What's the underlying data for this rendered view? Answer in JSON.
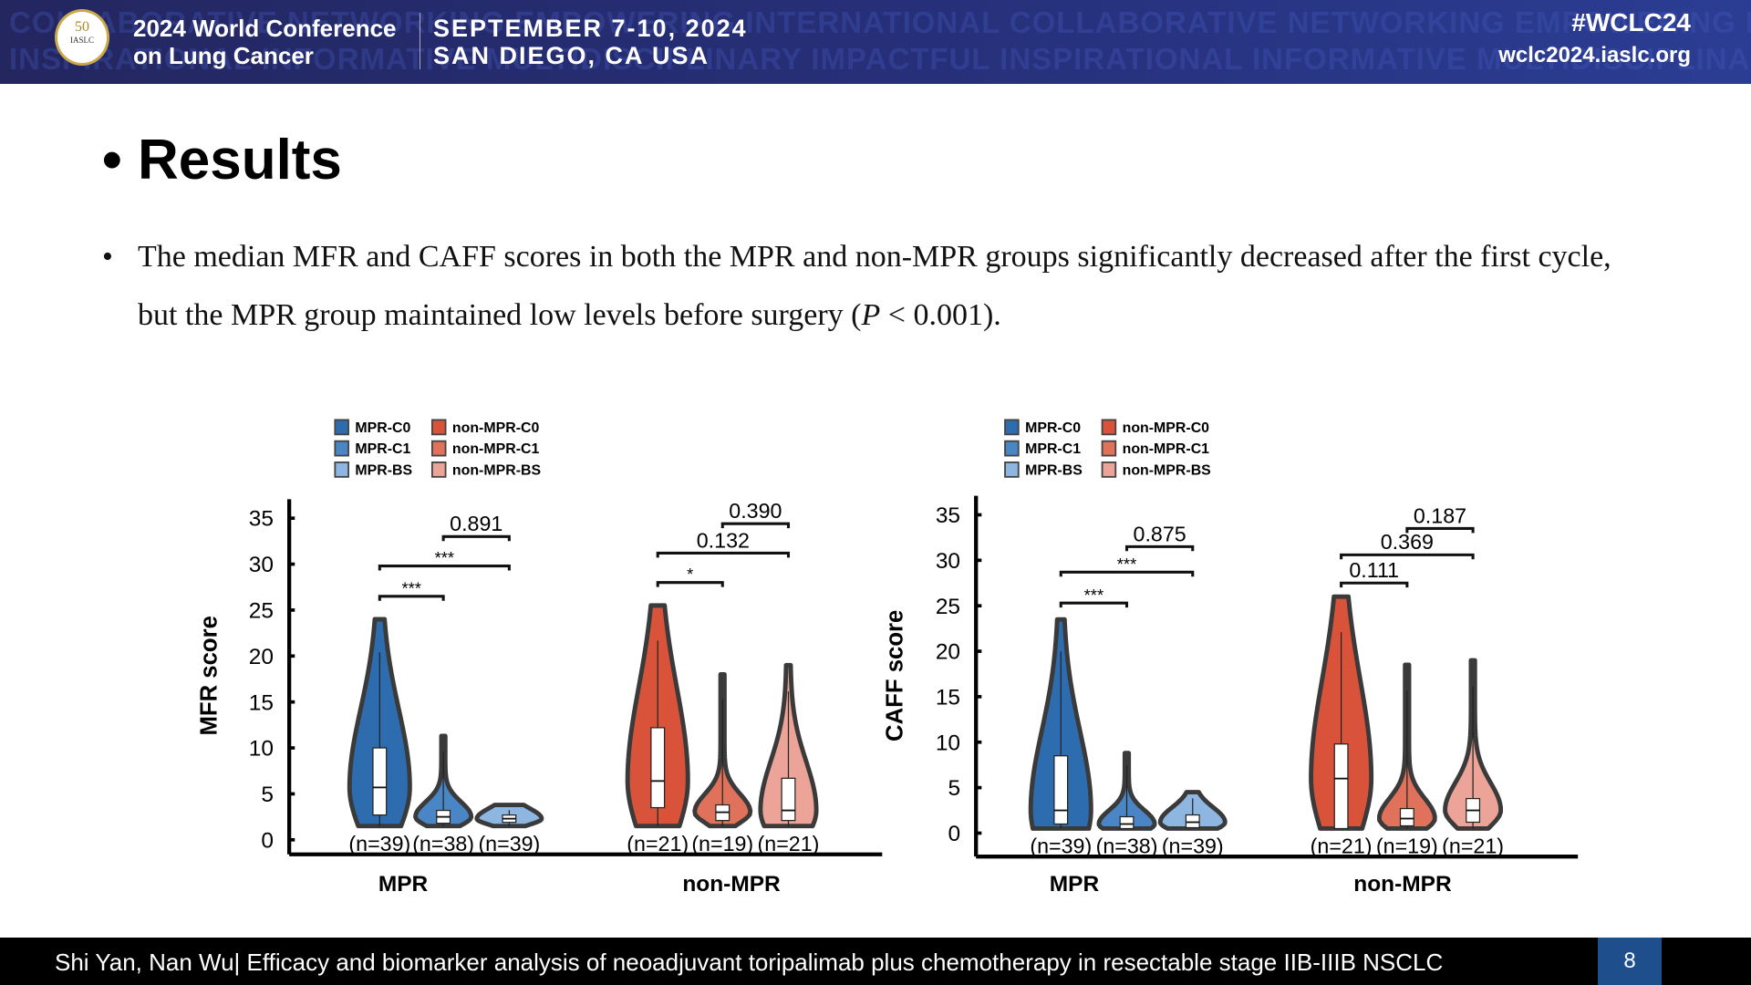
{
  "header": {
    "watermark": [
      "COLLABORATIVE NETWORKING EMPOWERING INTERNATIONAL COLLABORATIVE NETWORKING EMPOWERING INTERNATIONAL",
      "INSPIRATIONAL INFORMATIVE MULTIDISCIPLINARY IMPACTFUL INSPIRATIONAL INFORMATIVE MULTIDISCIPLINARY IMPACTFUL"
    ],
    "logo_text": "50",
    "logo_sub": "IASLC",
    "title_line1": "2024 World Conference",
    "title_line2": "on Lung Cancer",
    "date": "SEPTEMBER 7-10, 2024",
    "location": "SAN DIEGO, CA USA",
    "hashtag": "#WCLC24",
    "website": "wclc2024.iaslc.org"
  },
  "slide": {
    "title_bullet": "•",
    "title": "Results",
    "bullet": "•",
    "text_line1": "The median MFR and CAFF scores in both the MPR and non-MPR groups significantly decreased after the first cycle,",
    "text_line2_pre": "but the MPR group maintained low levels before surgery (",
    "text_italic": "P",
    "text_line2_post": " < 0.001)."
  },
  "footer": {
    "text": "Shi Yan, Nan Wu| Efficacy and biomarker analysis of neoadjuvant toripalimab plus chemotherapy in resectable stage IIB-IIIB NSCLC",
    "page": "8"
  },
  "legend": [
    {
      "label": "MPR-C0",
      "color": "#2e6cb0"
    },
    {
      "label": "MPR-C1",
      "color": "#4a86c5"
    },
    {
      "label": "MPR-BS",
      "color": "#8db7e0"
    },
    {
      "label": "non-MPR-C0",
      "color": "#d9533b"
    },
    {
      "label": "non-MPR-C1",
      "color": "#e0725c"
    },
    {
      "label": "non-MPR-BS",
      "color": "#eda498"
    }
  ],
  "chart_data": [
    {
      "type": "violin",
      "ylabel": "MFR score",
      "ylim": [
        0,
        35
      ],
      "yticks": [
        "0",
        "5",
        "10",
        "15",
        "20",
        "25",
        "30",
        "35"
      ],
      "groups": [
        "MPR",
        "non-MPR"
      ],
      "series": [
        {
          "name": "MPR-C0",
          "n": "(n=39)",
          "min": 1.5,
          "q1": 2.7,
          "median": 5.7,
          "q3": 10,
          "max": 24
        },
        {
          "name": "MPR-C1",
          "n": "(n=38)",
          "min": 1.5,
          "q1": 1.8,
          "median": 2.5,
          "q3": 3.2,
          "max": 11.3
        },
        {
          "name": "MPR-BS",
          "n": "(n=39)",
          "min": 1.5,
          "q1": 1.9,
          "median": 2.3,
          "q3": 2.7,
          "max": 3.8
        },
        {
          "name": "non-MPR-C0",
          "n": "(n=21)",
          "min": 1.5,
          "q1": 3.5,
          "median": 6.4,
          "q3": 12.2,
          "max": 25.5
        },
        {
          "name": "non-MPR-C1",
          "n": "(n=19)",
          "min": 1.5,
          "q1": 2.1,
          "median": 3,
          "q3": 3.8,
          "max": 18
        },
        {
          "name": "non-MPR-BS",
          "n": "(n=21)",
          "min": 1.5,
          "q1": 2.1,
          "median": 3.2,
          "q3": 6.7,
          "max": 19
        }
      ],
      "comparisons": [
        {
          "from": 0,
          "to": 1,
          "label": "***",
          "y": 26.5
        },
        {
          "from": 0,
          "to": 2,
          "label": "***",
          "y": 29.8
        },
        {
          "from": 1,
          "to": 2,
          "label": "0.891",
          "y": 33
        },
        {
          "from": 3,
          "to": 4,
          "label": "*",
          "y": 28
        },
        {
          "from": 3,
          "to": 5,
          "label": "0.132",
          "y": 31.2
        },
        {
          "from": 4,
          "to": 5,
          "label": "0.390",
          "y": 34.4
        }
      ]
    },
    {
      "type": "violin",
      "ylabel": "CAFF score",
      "ylim": [
        0,
        35
      ],
      "yticks": [
        "0",
        "5",
        "10",
        "15",
        "20",
        "25",
        "30",
        "35"
      ],
      "groups": [
        "MPR",
        "non-MPR"
      ],
      "series": [
        {
          "name": "MPR-C0",
          "n": "(n=39)",
          "min": 0.5,
          "q1": 1,
          "median": 2.5,
          "q3": 8.5,
          "max": 23.5
        },
        {
          "name": "MPR-C1",
          "n": "(n=38)",
          "min": 0.5,
          "q1": 0.5,
          "median": 1,
          "q3": 1.8,
          "max": 8.8
        },
        {
          "name": "MPR-BS",
          "n": "(n=39)",
          "min": 0.5,
          "q1": 0.6,
          "median": 1.2,
          "q3": 2,
          "max": 4.5
        },
        {
          "name": "non-MPR-C0",
          "n": "(n=21)",
          "min": 0.5,
          "q1": 0.5,
          "median": 6,
          "q3": 9.8,
          "max": 26
        },
        {
          "name": "non-MPR-C1",
          "n": "(n=19)",
          "min": 0.5,
          "q1": 0.8,
          "median": 1.6,
          "q3": 2.7,
          "max": 18.5
        },
        {
          "name": "non-MPR-BS",
          "n": "(n=21)",
          "min": 0.5,
          "q1": 1.2,
          "median": 2.5,
          "q3": 3.8,
          "max": 19
        }
      ],
      "comparisons": [
        {
          "from": 0,
          "to": 1,
          "label": "***",
          "y": 25.3
        },
        {
          "from": 0,
          "to": 2,
          "label": "***",
          "y": 28.7
        },
        {
          "from": 1,
          "to": 2,
          "label": "0.875",
          "y": 31.5
        },
        {
          "from": 3,
          "to": 4,
          "label": "0.111",
          "y": 27.5
        },
        {
          "from": 3,
          "to": 5,
          "label": "0.369",
          "y": 30.6
        },
        {
          "from": 4,
          "to": 5,
          "label": "0.187",
          "y": 33.5
        }
      ]
    }
  ]
}
